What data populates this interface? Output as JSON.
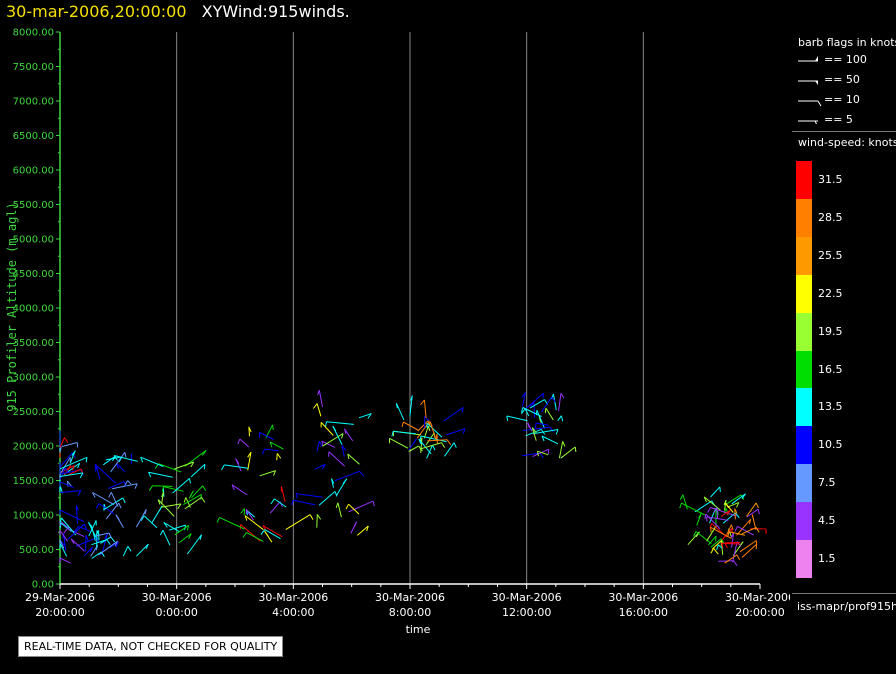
{
  "header": {
    "timestamp": "30-mar-2006,20:00:00",
    "product": "XYWind:915winds."
  },
  "chart_data": {
    "type": "scatter",
    "title": "XYWind:915winds.",
    "ylabel": "915 Profiler Altitude (m agl)",
    "xlabel": "time",
    "ylim": [
      0,
      8000
    ],
    "yticks": [
      "8000.00",
      "7500.00",
      "7000.00",
      "6500.00",
      "6000.00",
      "5500.00",
      "5000.00",
      "4500.00",
      "4000.00",
      "3500.00",
      "3000.00",
      "2500.00",
      "2000.00",
      "1500.00",
      "1000.00",
      "500.00",
      "0.00"
    ],
    "xticks": [
      {
        "date": "29-Mar-2006",
        "time": "20:00:00"
      },
      {
        "date": "30-Mar-2006",
        "time": "0:00:00"
      },
      {
        "date": "30-Mar-2006",
        "time": "4:00:00"
      },
      {
        "date": "30-Mar-2006",
        "time": "8:00:00"
      },
      {
        "date": "30-Mar-2006",
        "time": "12:00:00"
      },
      {
        "date": "30-Mar-2006",
        "time": "16:00:00"
      },
      {
        "date": "30-Mar-2006",
        "time": "20:00:00"
      }
    ],
    "xlim_hours": [
      0,
      24
    ],
    "grid": "vertical",
    "colorbar": {
      "title": "wind-speed: knots",
      "levels": [
        31.5,
        28.5,
        25.5,
        22.5,
        19.5,
        16.5,
        13.5,
        10.5,
        7.5,
        4.5,
        1.5
      ],
      "colors": [
        "#ff0000",
        "#ff8000",
        "#ff9900",
        "#ffff00",
        "#99ff33",
        "#00dd00",
        "#00ffff",
        "#0000ff",
        "#6699ff",
        "#9933ff",
        "#ee82ee"
      ]
    },
    "barb_legend": {
      "title": "barb flags in knots",
      "items": [
        "== 100",
        "== 50",
        "== 10",
        "== 5"
      ]
    },
    "clusters": [
      {
        "hour": 0.0,
        "alt": [
          1300,
          2000
        ],
        "speeds": [
          10.5,
          13.5,
          7.5,
          31.5
        ]
      },
      {
        "hour": 0.9,
        "alt": [
          300,
          1000
        ],
        "speeds": [
          13.5,
          10.5,
          7.5,
          4.5
        ]
      },
      {
        "hour": 1.9,
        "alt": [
          400,
          1800
        ],
        "speeds": [
          13.5,
          10.5,
          7.5
        ]
      },
      {
        "hour": 3.9,
        "alt": [
          400,
          1800
        ],
        "speeds": [
          16.5,
          13.5,
          19.5
        ]
      },
      {
        "hour": 7.0,
        "alt": [
          600,
          2400
        ],
        "speeds": [
          13.5,
          16.5,
          19.5,
          22.5,
          31.5,
          4.5,
          10.5
        ]
      },
      {
        "hour": 9.5,
        "alt": [
          700,
          2700
        ],
        "speeds": [
          13.5,
          19.5,
          22.5,
          4.5,
          10.5
        ]
      },
      {
        "hour": 12.5,
        "alt": [
          1800,
          2600
        ],
        "speeds": [
          13.5,
          19.5,
          28.5,
          10.5
        ]
      },
      {
        "hour": 16.5,
        "alt": [
          1800,
          2600
        ],
        "speeds": [
          13.5,
          19.5,
          4.5,
          10.5
        ]
      },
      {
        "hour": 22.3,
        "alt": [
          400,
          1300
        ],
        "speeds": [
          13.5,
          19.5,
          22.5,
          16.5
        ]
      },
      {
        "hour": 23.3,
        "alt": [
          300,
          1000
        ],
        "speeds": [
          28.5,
          25.5,
          31.5,
          4.5
        ]
      }
    ]
  },
  "qc_note": "REAL-TIME DATA, NOT CHECKED FOR QUALITY",
  "footer": "iss-mapr/prof915h",
  "colors": {
    "axis": "#3ed63e",
    "title_time": "#f5e000",
    "grid": "#888888"
  }
}
